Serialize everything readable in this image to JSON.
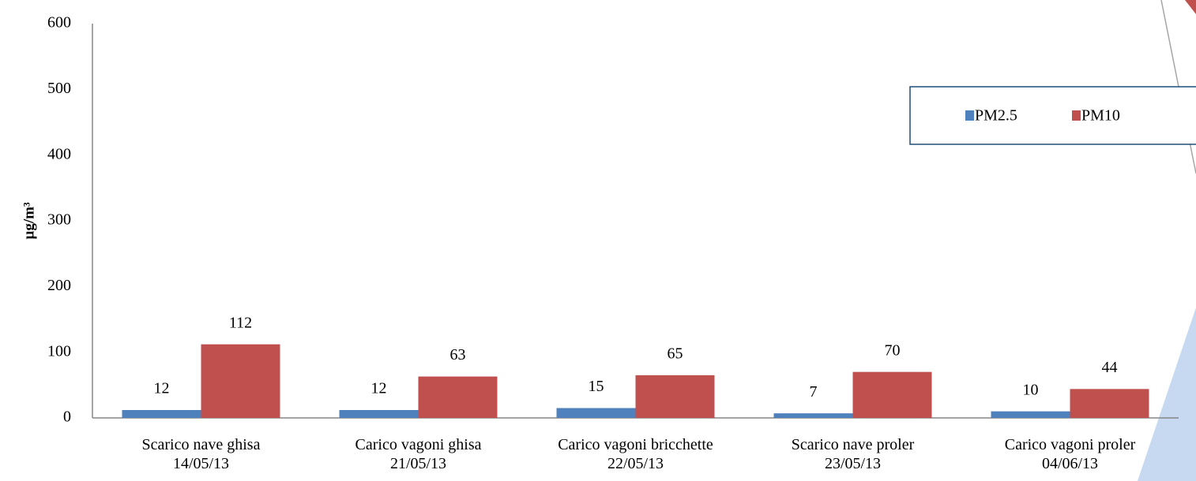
{
  "chart_data": {
    "type": "bar",
    "y_label": "µg/m³",
    "categories": [
      "Scarico nave ghisa\n14/05/13",
      "Carico vagoni ghisa\n21/05/13",
      "Carico vagoni bricchette\n22/05/13",
      "Scarico nave proler\n23/05/13",
      "Carico vagoni proler\n04/06/13"
    ],
    "series": [
      {
        "name": "PM2.5",
        "color": "#4f81bd",
        "values": [
          12,
          12,
          15,
          7,
          10
        ]
      },
      {
        "name": "PM10",
        "color": "#c0504d",
        "values": [
          112,
          63,
          65,
          70,
          44
        ]
      }
    ],
    "ylim": [
      0,
      600
    ],
    "yticks": [
      0,
      100,
      200,
      300,
      400,
      500,
      600
    ],
    "grid": false,
    "legend": "upper right"
  }
}
